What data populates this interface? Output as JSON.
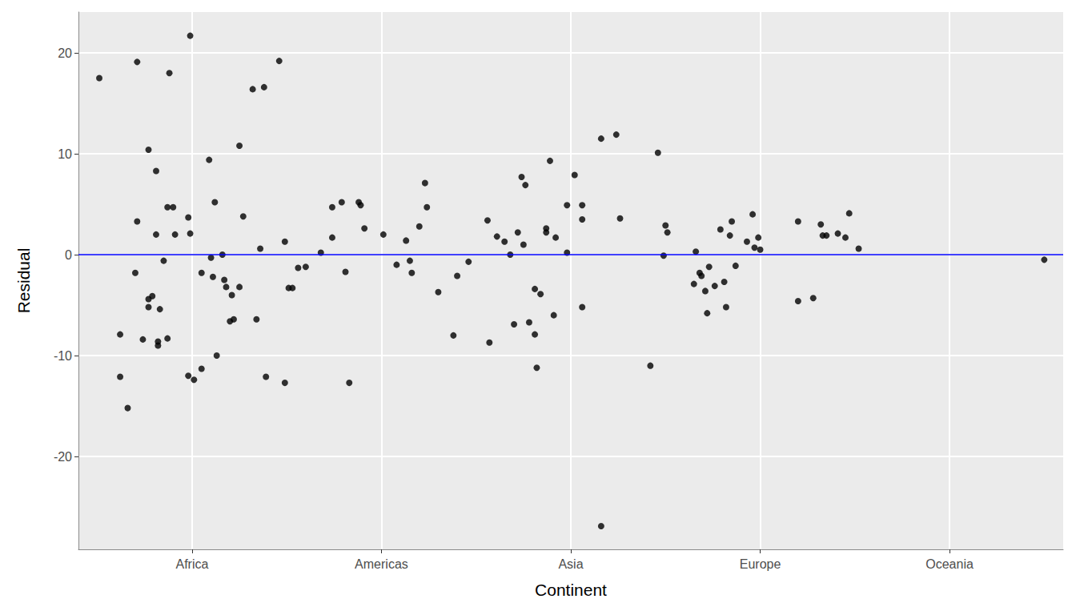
{
  "chart_data": {
    "type": "scatter",
    "x_label": "Continent",
    "y_label": "Residual",
    "color": "#000000",
    "marker": "circle",
    "grid": true,
    "xlim": [
      0.4,
      5.6
    ],
    "xticks": [
      {
        "value": 1,
        "label": "Africa"
      },
      {
        "value": 2,
        "label": "Americas"
      },
      {
        "value": 3,
        "label": "Asia"
      },
      {
        "value": 4,
        "label": "Europe"
      },
      {
        "value": 5,
        "label": "Oceania"
      }
    ],
    "ylim": [
      -29.2,
      24.05
    ],
    "yticks": [
      -20,
      -10,
      0,
      10,
      20
    ],
    "hline": {
      "value": 0,
      "color": "#0000ff"
    },
    "x": [
      0.51,
      0.71,
      0.62,
      0.62,
      0.66,
      0.71,
      0.7,
      0.74,
      0.77,
      0.77,
      0.79,
      0.77,
      0.81,
      0.81,
      0.82,
      0.82,
      0.83,
      0.85,
      0.87,
      0.87,
      0.88,
      0.9,
      0.91,
      0.98,
      0.98,
      0.99,
      0.99,
      1.01,
      1.05,
      1.05,
      1.09,
      1.1,
      1.11,
      1.12,
      1.13,
      1.16,
      1.17,
      1.18,
      1.2,
      1.21,
      1.22,
      1.25,
      1.25,
      1.27,
      1.32,
      1.34,
      1.36,
      1.38,
      1.39,
      1.46,
      1.49,
      1.49,
      1.51,
      1.53,
      1.56,
      1.6,
      1.68,
      1.74,
      1.74,
      1.79,
      1.81,
      1.83,
      1.88,
      1.89,
      1.91,
      2.01,
      2.08,
      2.13,
      2.15,
      2.16,
      2.2,
      2.23,
      2.24,
      2.3,
      2.38,
      2.4,
      2.46,
      2.56,
      2.57,
      2.61,
      2.65,
      2.68,
      2.7,
      2.72,
      2.74,
      2.75,
      2.76,
      2.78,
      2.81,
      2.81,
      2.82,
      2.84,
      2.87,
      2.87,
      2.89,
      2.91,
      2.92,
      2.98,
      2.98,
      3.02,
      3.06,
      3.06,
      3.06,
      3.16,
      3.16,
      3.24,
      3.26,
      3.42,
      3.46,
      3.49,
      3.5,
      3.51,
      3.65,
      3.66,
      3.68,
      3.69,
      3.71,
      3.72,
      3.73,
      3.76,
      3.79,
      3.81,
      3.82,
      3.84,
      3.85,
      3.87,
      3.93,
      3.96,
      3.97,
      3.99,
      4.0,
      4.2,
      4.2,
      4.28,
      4.32,
      4.33,
      4.35,
      4.41,
      4.45,
      4.47,
      4.52,
      5.5
    ],
    "values": [
      17.5,
      19.1,
      -7.9,
      -12.1,
      -15.2,
      3.3,
      -1.8,
      -8.4,
      10.4,
      -4.4,
      -4.1,
      -5.2,
      8.3,
      2.0,
      -8.6,
      -9.0,
      -5.4,
      -0.6,
      -8.3,
      4.7,
      18.0,
      4.7,
      2.0,
      3.7,
      -12.0,
      2.1,
      21.7,
      -12.4,
      -1.8,
      -11.3,
      9.4,
      -0.3,
      -2.2,
      5.2,
      -10.0,
      0.0,
      -2.5,
      -3.2,
      -6.6,
      -4.0,
      -6.4,
      -3.2,
      10.8,
      3.8,
      16.4,
      -6.4,
      0.6,
      16.6,
      -12.1,
      19.2,
      -12.7,
      1.3,
      -3.3,
      -3.3,
      -1.3,
      -1.2,
      0.2,
      4.7,
      1.7,
      5.2,
      -1.7,
      -12.7,
      5.2,
      4.9,
      2.6,
      2.0,
      -1.0,
      1.4,
      -0.6,
      -1.8,
      2.8,
      7.1,
      4.7,
      -3.7,
      -8.0,
      -2.1,
      -0.7,
      3.4,
      -8.7,
      1.8,
      1.3,
      0.0,
      -6.9,
      2.2,
      7.7,
      1.0,
      6.9,
      -6.7,
      -3.4,
      -7.9,
      -11.2,
      -3.9,
      2.2,
      2.6,
      9.3,
      -6.0,
      1.7,
      0.2,
      4.9,
      7.9,
      4.9,
      3.5,
      -5.2,
      11.5,
      -26.9,
      11.9,
      3.6,
      -11.0,
      10.1,
      -0.1,
      2.9,
      2.2,
      -2.9,
      0.3,
      -1.8,
      -2.1,
      -3.6,
      -5.8,
      -1.2,
      -3.1,
      2.5,
      -2.7,
      -5.2,
      1.9,
      3.3,
      -1.1,
      1.3,
      4.0,
      0.7,
      1.7,
      0.5,
      3.3,
      -4.6,
      -4.3,
      3.0,
      1.9,
      1.9,
      2.1,
      1.7,
      4.1,
      0.6,
      -0.5
    ]
  }
}
